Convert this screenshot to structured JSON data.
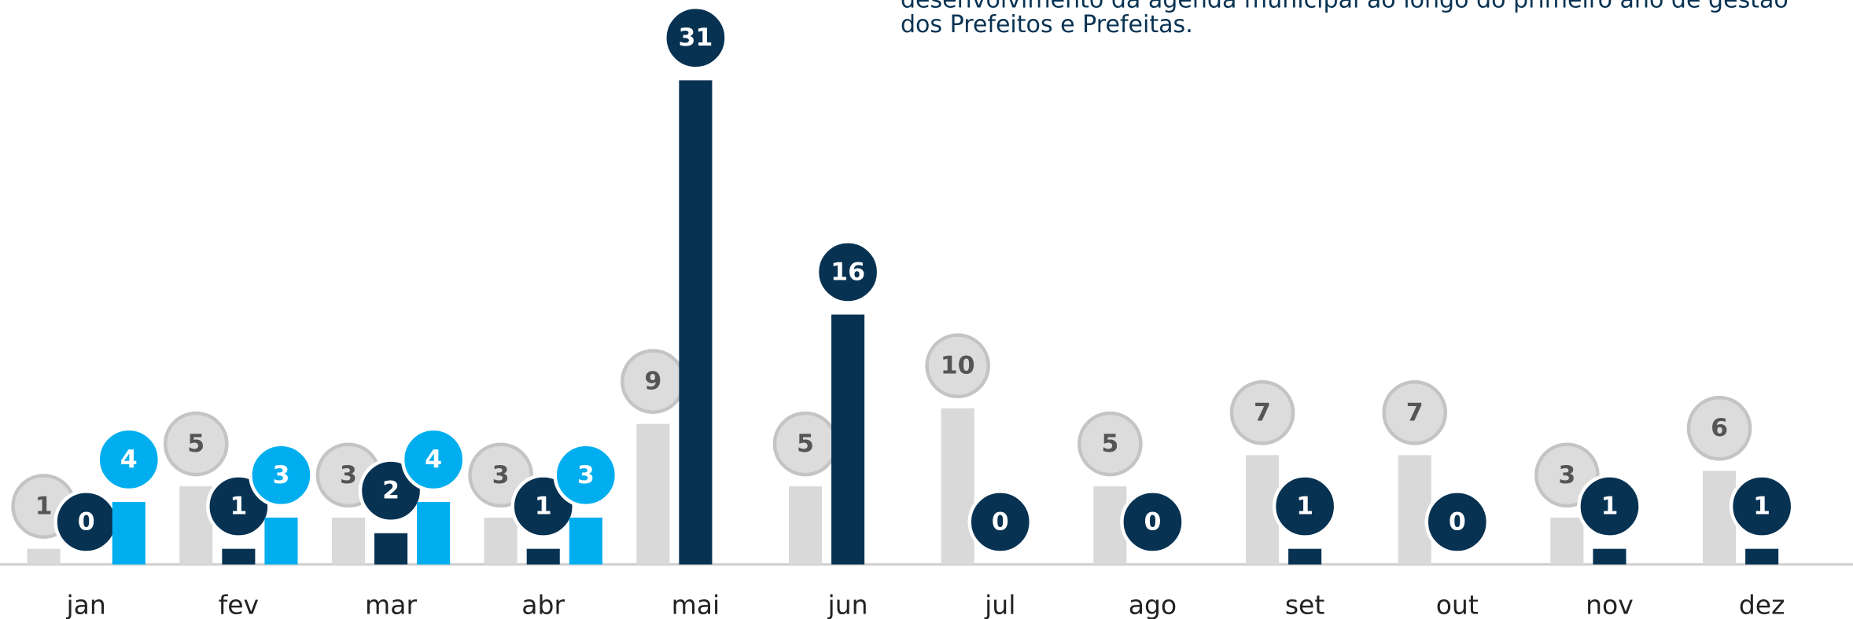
{
  "chart_data": {
    "type": "bar",
    "notes": [
      "desenvolvimento da agenda municipal ao longo do primeiro ano de gestão",
      "dos Prefeitos e Prefeitas."
    ],
    "categories": [
      "jan",
      "fev",
      "mar",
      "abr",
      "mai",
      "jun",
      "jul",
      "ago",
      "set",
      "out",
      "nov",
      "dez"
    ],
    "series": [
      {
        "color": "#d9d9d9",
        "values": [
          1,
          5,
          3,
          3,
          9,
          5,
          10,
          5,
          7,
          7,
          3,
          6
        ]
      },
      {
        "color": "#073252",
        "values": [
          0,
          1,
          2,
          1,
          31,
          16,
          0,
          0,
          1,
          0,
          1,
          1
        ]
      },
      {
        "color": "#00aeef",
        "values": [
          4,
          3,
          4,
          3,
          null,
          null,
          null,
          null,
          null,
          null,
          null,
          null
        ]
      }
    ],
    "ylim": [
      0,
      36
    ]
  }
}
